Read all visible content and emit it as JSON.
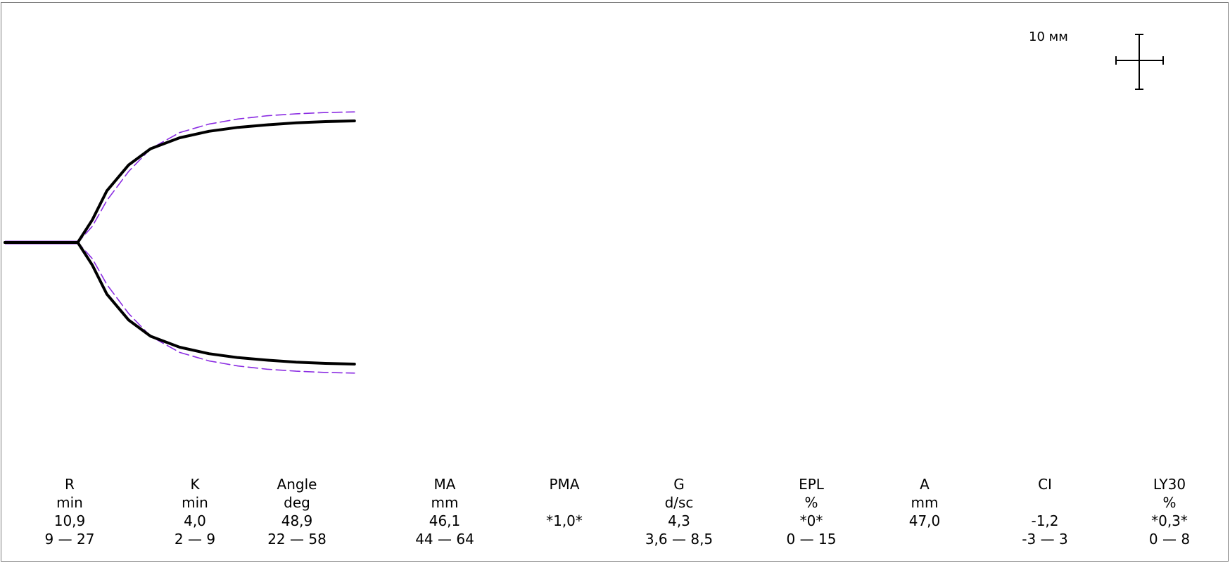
{
  "scale_label": "10 мм",
  "chart_data": {
    "type": "line",
    "colors": {
      "measured": "#000000",
      "reference": "#8a2be2"
    },
    "note_units": "mm",
    "series": [
      {
        "role": "upper",
        "style": "measured",
        "x": [
          0,
          5,
          10,
          12,
          14,
          17,
          20,
          24,
          28,
          32,
          36,
          40,
          44,
          48
        ],
        "y": [
          0,
          0,
          0,
          3.5,
          8,
          12,
          14.5,
          16.2,
          17.2,
          17.8,
          18.2,
          18.5,
          18.7,
          18.8
        ]
      },
      {
        "role": "lower",
        "style": "measured",
        "x": [
          0,
          5,
          10,
          12,
          14,
          17,
          20,
          24,
          28,
          32,
          36,
          40,
          44,
          48
        ],
        "y": [
          0,
          0,
          0,
          -3.5,
          -8,
          -12,
          -14.5,
          -16.2,
          -17.2,
          -17.8,
          -18.2,
          -18.5,
          -18.7,
          -18.8
        ]
      },
      {
        "role": "upper",
        "style": "reference",
        "x": [
          0,
          5,
          10,
          12,
          14,
          17,
          20,
          24,
          28,
          32,
          36,
          40,
          44,
          48
        ],
        "y": [
          0,
          0,
          0,
          2.5,
          6.5,
          11,
          14.5,
          17,
          18.3,
          19.1,
          19.6,
          19.9,
          20.1,
          20.2
        ]
      },
      {
        "role": "lower",
        "style": "reference",
        "x": [
          0,
          5,
          10,
          12,
          14,
          17,
          20,
          24,
          28,
          32,
          36,
          40,
          44,
          48
        ],
        "y": [
          0,
          0,
          0,
          -2.5,
          -6.5,
          -11,
          -14.5,
          -17,
          -18.3,
          -19.1,
          -19.6,
          -19.9,
          -20.1,
          -20.2
        ]
      }
    ],
    "metrics": [
      {
        "name": "R",
        "unit": "min",
        "value": "10,9",
        "range": "9 — 27"
      },
      {
        "name": "K",
        "unit": "min",
        "value": "4,0",
        "range": "2 — 9"
      },
      {
        "name": "Angle",
        "unit": "deg",
        "value": "48,9",
        "range": "22 — 58"
      },
      {
        "name": "MA",
        "unit": "mm",
        "value": "46,1",
        "range": "44 — 64"
      },
      {
        "name": "PMA",
        "unit": "",
        "value": "*1,0*",
        "range": ""
      },
      {
        "name": "G",
        "unit": "d/sc",
        "value": "4,3",
        "range": "3,6 — 8,5"
      },
      {
        "name": "EPL",
        "unit": "%",
        "value": "*0*",
        "range": "0 — 15"
      },
      {
        "name": "A",
        "unit": "mm",
        "value": "47,0",
        "range": ""
      },
      {
        "name": "CI",
        "unit": "",
        "value": "-1,2",
        "range": "-3 — 3"
      },
      {
        "name": "LY30",
        "unit": "%",
        "value": "*0,3*",
        "range": "0 — 8"
      }
    ]
  }
}
